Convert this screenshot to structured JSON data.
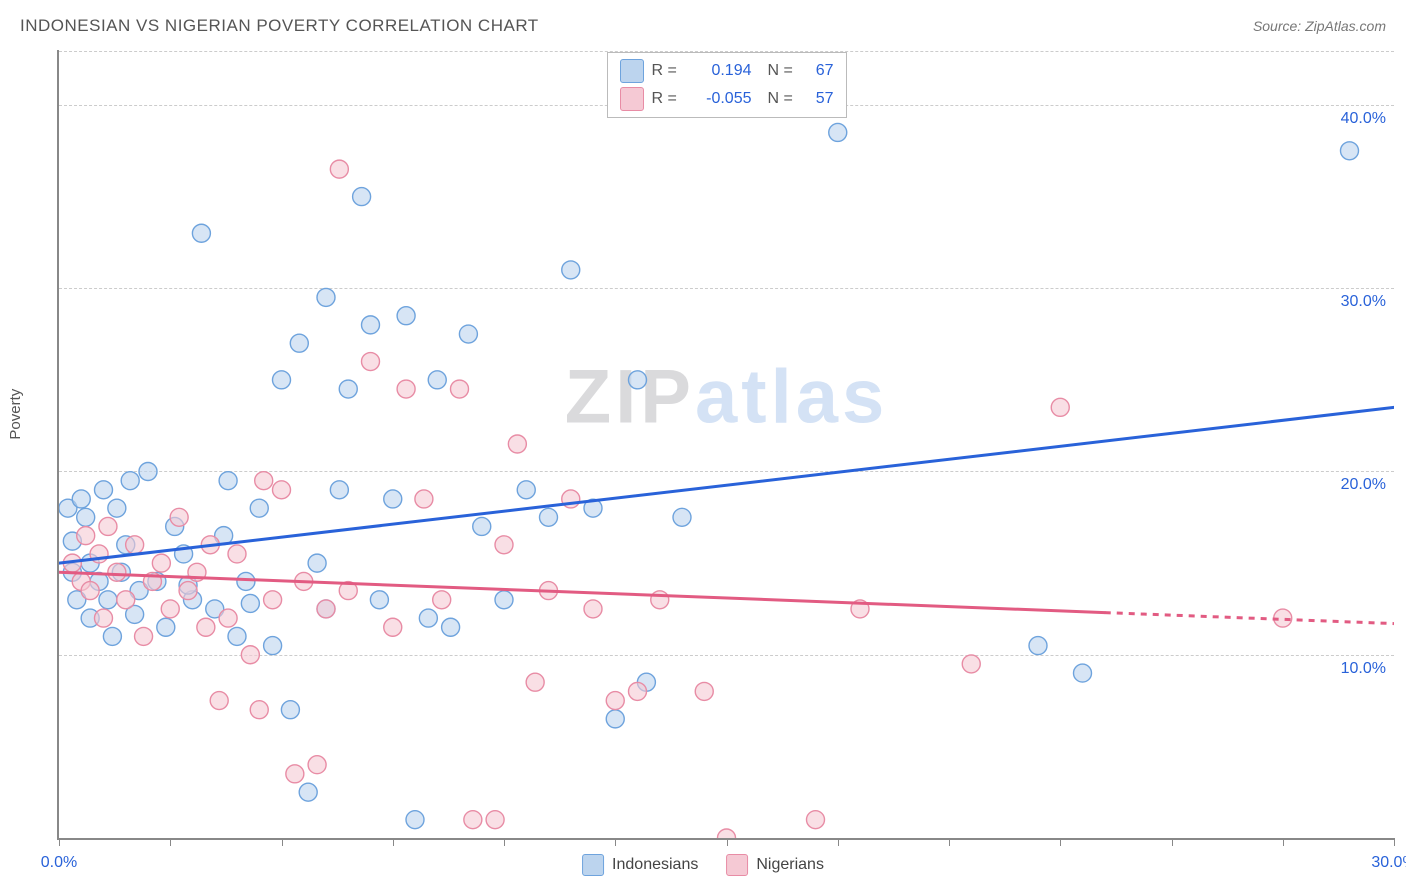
{
  "title": "INDONESIAN VS NIGERIAN POVERTY CORRELATION CHART",
  "source": "Source: ZipAtlas.com",
  "watermark_zip": "ZIP",
  "watermark_atlas": "atlas",
  "ylabel": "Poverty",
  "chart": {
    "type": "scatter",
    "xlim": [
      0,
      30
    ],
    "ylim": [
      0,
      43
    ],
    "xticks": [
      0,
      2.5,
      5,
      7.5,
      10,
      12.5,
      15,
      17.5,
      20,
      22.5,
      25,
      27.5,
      30
    ],
    "xtick_labels": {
      "0": "0.0%",
      "30": "30.0%"
    },
    "ygrid": [
      10,
      20,
      30,
      40
    ],
    "ytick_labels": {
      "10": "10.0%",
      "20": "20.0%",
      "30": "30.0%",
      "40": "40.0%"
    },
    "background_color": "#ffffff",
    "grid_color": "#cccccc",
    "axis_color": "#888888",
    "tick_label_color": "#2962d9",
    "marker_radius": 9,
    "marker_stroke_width": 1.4,
    "series": [
      {
        "name": "Indonesians",
        "fill": "#bcd4ee",
        "stroke": "#6ea3dd",
        "fill_opacity": 0.6,
        "R": "0.194",
        "N": "67",
        "trend": {
          "x1": 0,
          "y1": 15.0,
          "x2": 30,
          "y2": 23.5,
          "stroke": "#2962d9",
          "width": 3
        },
        "points": [
          [
            0.2,
            18.0
          ],
          [
            0.3,
            14.5
          ],
          [
            0.3,
            16.2
          ],
          [
            0.4,
            13.0
          ],
          [
            0.5,
            18.5
          ],
          [
            0.6,
            17.5
          ],
          [
            0.7,
            15.0
          ],
          [
            0.7,
            12.0
          ],
          [
            0.9,
            14.0
          ],
          [
            1.0,
            19.0
          ],
          [
            1.1,
            13.0
          ],
          [
            1.2,
            11.0
          ],
          [
            1.3,
            18.0
          ],
          [
            1.4,
            14.5
          ],
          [
            1.5,
            16.0
          ],
          [
            1.6,
            19.5
          ],
          [
            1.8,
            13.5
          ],
          [
            2.0,
            20.0
          ],
          [
            2.2,
            14.0
          ],
          [
            2.4,
            11.5
          ],
          [
            2.6,
            17.0
          ],
          [
            2.8,
            15.5
          ],
          [
            3.0,
            13.0
          ],
          [
            3.2,
            33.0
          ],
          [
            3.5,
            12.5
          ],
          [
            3.7,
            16.5
          ],
          [
            4.0,
            11.0
          ],
          [
            4.2,
            14.0
          ],
          [
            4.5,
            18.0
          ],
          [
            4.8,
            10.5
          ],
          [
            5.0,
            25.0
          ],
          [
            5.2,
            7.0
          ],
          [
            5.4,
            27.0
          ],
          [
            5.6,
            2.5
          ],
          [
            5.8,
            15.0
          ],
          [
            6.0,
            29.5
          ],
          [
            6.3,
            19.0
          ],
          [
            6.5,
            24.5
          ],
          [
            6.8,
            35.0
          ],
          [
            7.0,
            28.0
          ],
          [
            7.2,
            13.0
          ],
          [
            7.5,
            18.5
          ],
          [
            7.8,
            28.5
          ],
          [
            8.0,
            1.0
          ],
          [
            8.3,
            12.0
          ],
          [
            8.5,
            25.0
          ],
          [
            8.8,
            11.5
          ],
          [
            9.2,
            27.5
          ],
          [
            9.5,
            17.0
          ],
          [
            10.0,
            13.0
          ],
          [
            10.5,
            19.0
          ],
          [
            11.0,
            17.5
          ],
          [
            11.5,
            31.0
          ],
          [
            12.0,
            18.0
          ],
          [
            12.5,
            6.5
          ],
          [
            13.0,
            25.0
          ],
          [
            13.2,
            8.5
          ],
          [
            14.0,
            17.5
          ],
          [
            17.5,
            38.5
          ],
          [
            22.0,
            10.5
          ],
          [
            23.0,
            9.0
          ],
          [
            29.0,
            37.5
          ],
          [
            6.0,
            12.5
          ],
          [
            4.3,
            12.8
          ],
          [
            3.8,
            19.5
          ],
          [
            2.9,
            13.8
          ],
          [
            1.7,
            12.2
          ]
        ]
      },
      {
        "name": "Nigerians",
        "fill": "#f5c9d4",
        "stroke": "#e88ca5",
        "fill_opacity": 0.6,
        "R": "-0.055",
        "N": "57",
        "trend": {
          "x1": 0,
          "y1": 14.5,
          "x2": 23.5,
          "y2": 12.3,
          "stroke": "#e25b82",
          "width": 3,
          "dash_ext": {
            "x1": 23.5,
            "y1": 12.3,
            "x2": 30,
            "y2": 11.7
          }
        },
        "points": [
          [
            0.3,
            15.0
          ],
          [
            0.5,
            14.0
          ],
          [
            0.6,
            16.5
          ],
          [
            0.7,
            13.5
          ],
          [
            0.9,
            15.5
          ],
          [
            1.0,
            12.0
          ],
          [
            1.1,
            17.0
          ],
          [
            1.3,
            14.5
          ],
          [
            1.5,
            13.0
          ],
          [
            1.7,
            16.0
          ],
          [
            1.9,
            11.0
          ],
          [
            2.1,
            14.0
          ],
          [
            2.3,
            15.0
          ],
          [
            2.5,
            12.5
          ],
          [
            2.7,
            17.5
          ],
          [
            2.9,
            13.5
          ],
          [
            3.1,
            14.5
          ],
          [
            3.3,
            11.5
          ],
          [
            3.6,
            7.5
          ],
          [
            3.8,
            12.0
          ],
          [
            4.0,
            15.5
          ],
          [
            4.3,
            10.0
          ],
          [
            4.5,
            7.0
          ],
          [
            4.8,
            13.0
          ],
          [
            5.0,
            19.0
          ],
          [
            5.3,
            3.5
          ],
          [
            5.5,
            14.0
          ],
          [
            5.8,
            4.0
          ],
          [
            6.0,
            12.5
          ],
          [
            6.3,
            36.5
          ],
          [
            6.5,
            13.5
          ],
          [
            7.0,
            26.0
          ],
          [
            7.5,
            11.5
          ],
          [
            7.8,
            24.5
          ],
          [
            8.2,
            18.5
          ],
          [
            8.6,
            13.0
          ],
          [
            9.0,
            24.5
          ],
          [
            9.3,
            1.0
          ],
          [
            9.8,
            1.0
          ],
          [
            10.0,
            16.0
          ],
          [
            10.3,
            21.5
          ],
          [
            10.7,
            8.5
          ],
          [
            11.0,
            13.5
          ],
          [
            11.5,
            18.5
          ],
          [
            12.0,
            12.5
          ],
          [
            12.5,
            7.5
          ],
          [
            13.0,
            8.0
          ],
          [
            13.5,
            13.0
          ],
          [
            14.5,
            8.0
          ],
          [
            15.0,
            0.0
          ],
          [
            17.0,
            1.0
          ],
          [
            18.0,
            12.5
          ],
          [
            20.5,
            9.5
          ],
          [
            22.5,
            23.5
          ],
          [
            27.5,
            12.0
          ],
          [
            4.6,
            19.5
          ],
          [
            3.4,
            16.0
          ]
        ]
      }
    ]
  },
  "xlegend": [
    {
      "label": "Indonesians",
      "fill": "#bcd4ee",
      "stroke": "#6ea3dd"
    },
    {
      "label": "Nigerians",
      "fill": "#f5c9d4",
      "stroke": "#e88ca5"
    }
  ]
}
